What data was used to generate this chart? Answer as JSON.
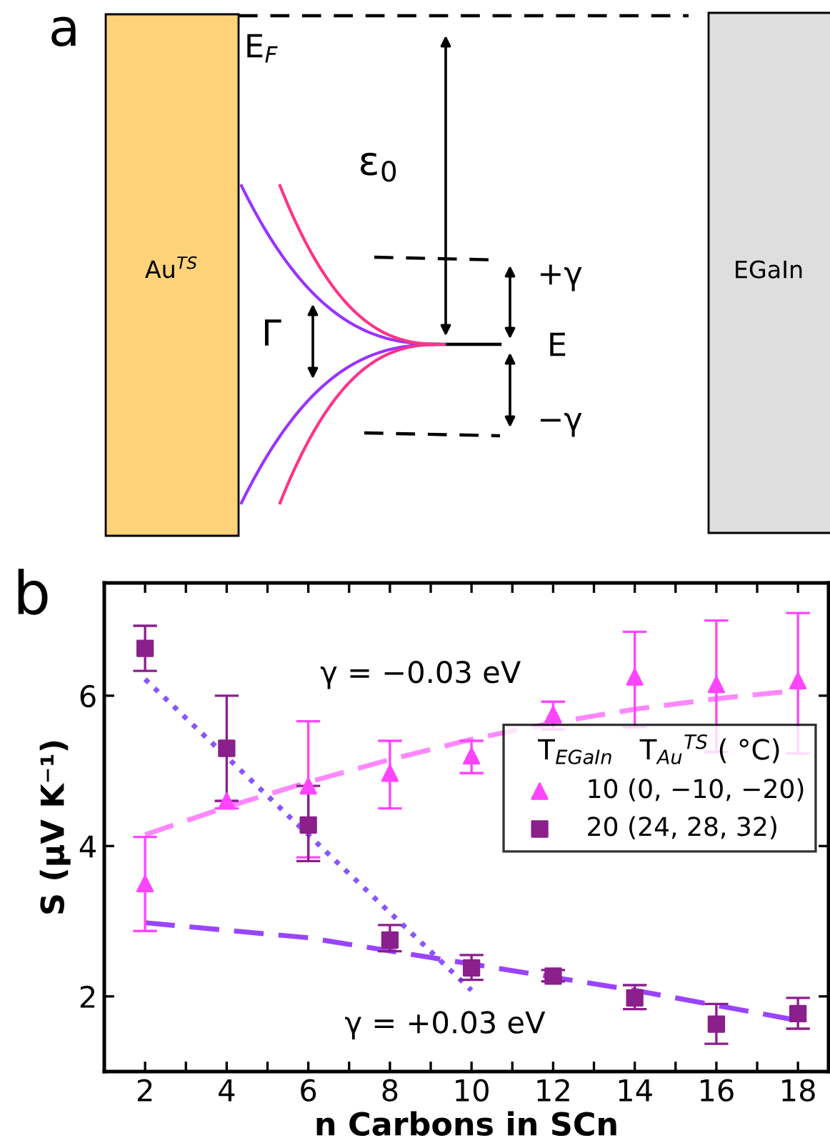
{
  "chart_data": [
    {
      "type": "other",
      "annotations": [
        "a",
        "E$_{F}$",
        "ε$_{0}$",
        "Au$^{TS}$",
        "EGaIn",
        "Γ",
        "+γ",
        "E",
        "−γ"
      ]
    },
    {
      "type": "scatter",
      "xlabel": "n Carbons in SCn",
      "ylabel": "S (µV K⁻¹)",
      "legend_title": "T$_{EGaIn}$   T$_{Au}$$^{TS}$ ( °C)",
      "annotations": [
        "b",
        "γ = −0.03 eV",
        "γ = +0.03 eV"
      ],
      "xlim": [
        1,
        18.75
      ],
      "ylim": [
        1,
        7.5
      ],
      "xticks": [
        2,
        {
          "value": 3,
          "label": null
        },
        4,
        {
          "value": 5,
          "label": null
        },
        6,
        {
          "value": 7,
          "label": null
        },
        8,
        {
          "value": 9,
          "label": null
        },
        10,
        {
          "value": 11,
          "label": null
        },
        12,
        {
          "value": 13,
          "label": null
        },
        14,
        {
          "value": 15,
          "label": null
        },
        16,
        {
          "value": 17,
          "label": null
        },
        18
      ],
      "yticks": [
        2,
        4,
        6
      ],
      "grid": false,
      "legend": "center right",
      "series": [
        {
          "type": "line",
          "color": "#ff88ff",
          "line_style": "dashed",
          "marker": "none",
          "x": [
            2,
            4,
            6,
            8,
            10,
            12,
            14,
            16,
            18
          ],
          "values": [
            4.15,
            4.52,
            4.85,
            5.15,
            5.42,
            5.64,
            5.82,
            5.96,
            6.07
          ]
        },
        {
          "type": "line",
          "color": "#9944ff",
          "line_style": "dashed",
          "marker": "none",
          "x": [
            2,
            6,
            10,
            14,
            18
          ],
          "values": [
            2.98,
            2.78,
            2.43,
            2.08,
            1.68
          ]
        },
        {
          "type": "line",
          "color": "#8855ff",
          "line_style": "dotted",
          "marker": "none",
          "x": [
            2,
            10
          ],
          "values": [
            6.22,
            2.08
          ]
        },
        {
          "type": "scatter",
          "name": "10 (0, −10, −20)",
          "color": "#ff44ff",
          "marker": "triangle",
          "x": [
            2,
            4,
            6,
            8,
            10,
            12,
            14,
            16,
            18
          ],
          "values": [
            3.5,
            4.6,
            4.8,
            4.97,
            5.2,
            5.75,
            6.25,
            6.15,
            6.2
          ],
          "errors": [
            [
              2.87,
              4.12
            ],
            [
              4.5,
              4.6
            ],
            [
              3.85,
              5.66
            ],
            [
              4.5,
              5.4
            ],
            [
              4.97,
              5.4
            ],
            [
              5.55,
              5.92
            ],
            [
              5.58,
              6.85
            ],
            [
              5.25,
              7.0
            ],
            [
              5.23,
              7.1
            ]
          ]
        },
        {
          "type": "scatter",
          "name": "20 (24, 28, 32)",
          "color": "#8b1f8b",
          "marker": "square",
          "x": [
            2,
            4,
            6,
            8,
            10,
            12,
            14,
            16,
            18
          ],
          "values": [
            6.63,
            5.3,
            4.28,
            2.75,
            2.38,
            2.27,
            1.98,
            1.63,
            1.77
          ],
          "errors": [
            [
              6.33,
              6.93
            ],
            [
              4.6,
              6.0
            ],
            [
              3.8,
              4.8
            ],
            [
              2.6,
              2.95
            ],
            [
              2.22,
              2.55
            ],
            [
              2.2,
              2.35
            ],
            [
              1.83,
              2.15
            ],
            [
              1.37,
              1.9
            ],
            [
              1.57,
              1.98
            ]
          ]
        }
      ]
    }
  ]
}
